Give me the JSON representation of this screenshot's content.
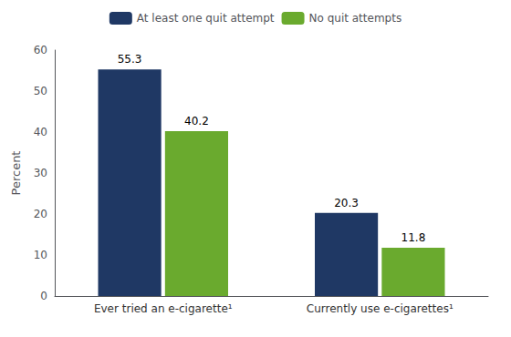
{
  "chart_data": {
    "type": "bar",
    "categories": [
      "Ever tried an e-cigarette¹",
      "Currently use e-cigarettes¹"
    ],
    "series": [
      {
        "name": "At least one quit attempt",
        "color": "#1f3864",
        "values": [
          55.3,
          20.3
        ]
      },
      {
        "name": "No quit attempts",
        "color": "#6aaa2e",
        "values": [
          40.2,
          11.8
        ]
      }
    ],
    "ylabel": "Percent",
    "ylim": [
      0,
      60
    ],
    "yticks": [
      0,
      10,
      20,
      30,
      40,
      50,
      60
    ],
    "grid": false,
    "legend": "top",
    "data_labels": true
  }
}
